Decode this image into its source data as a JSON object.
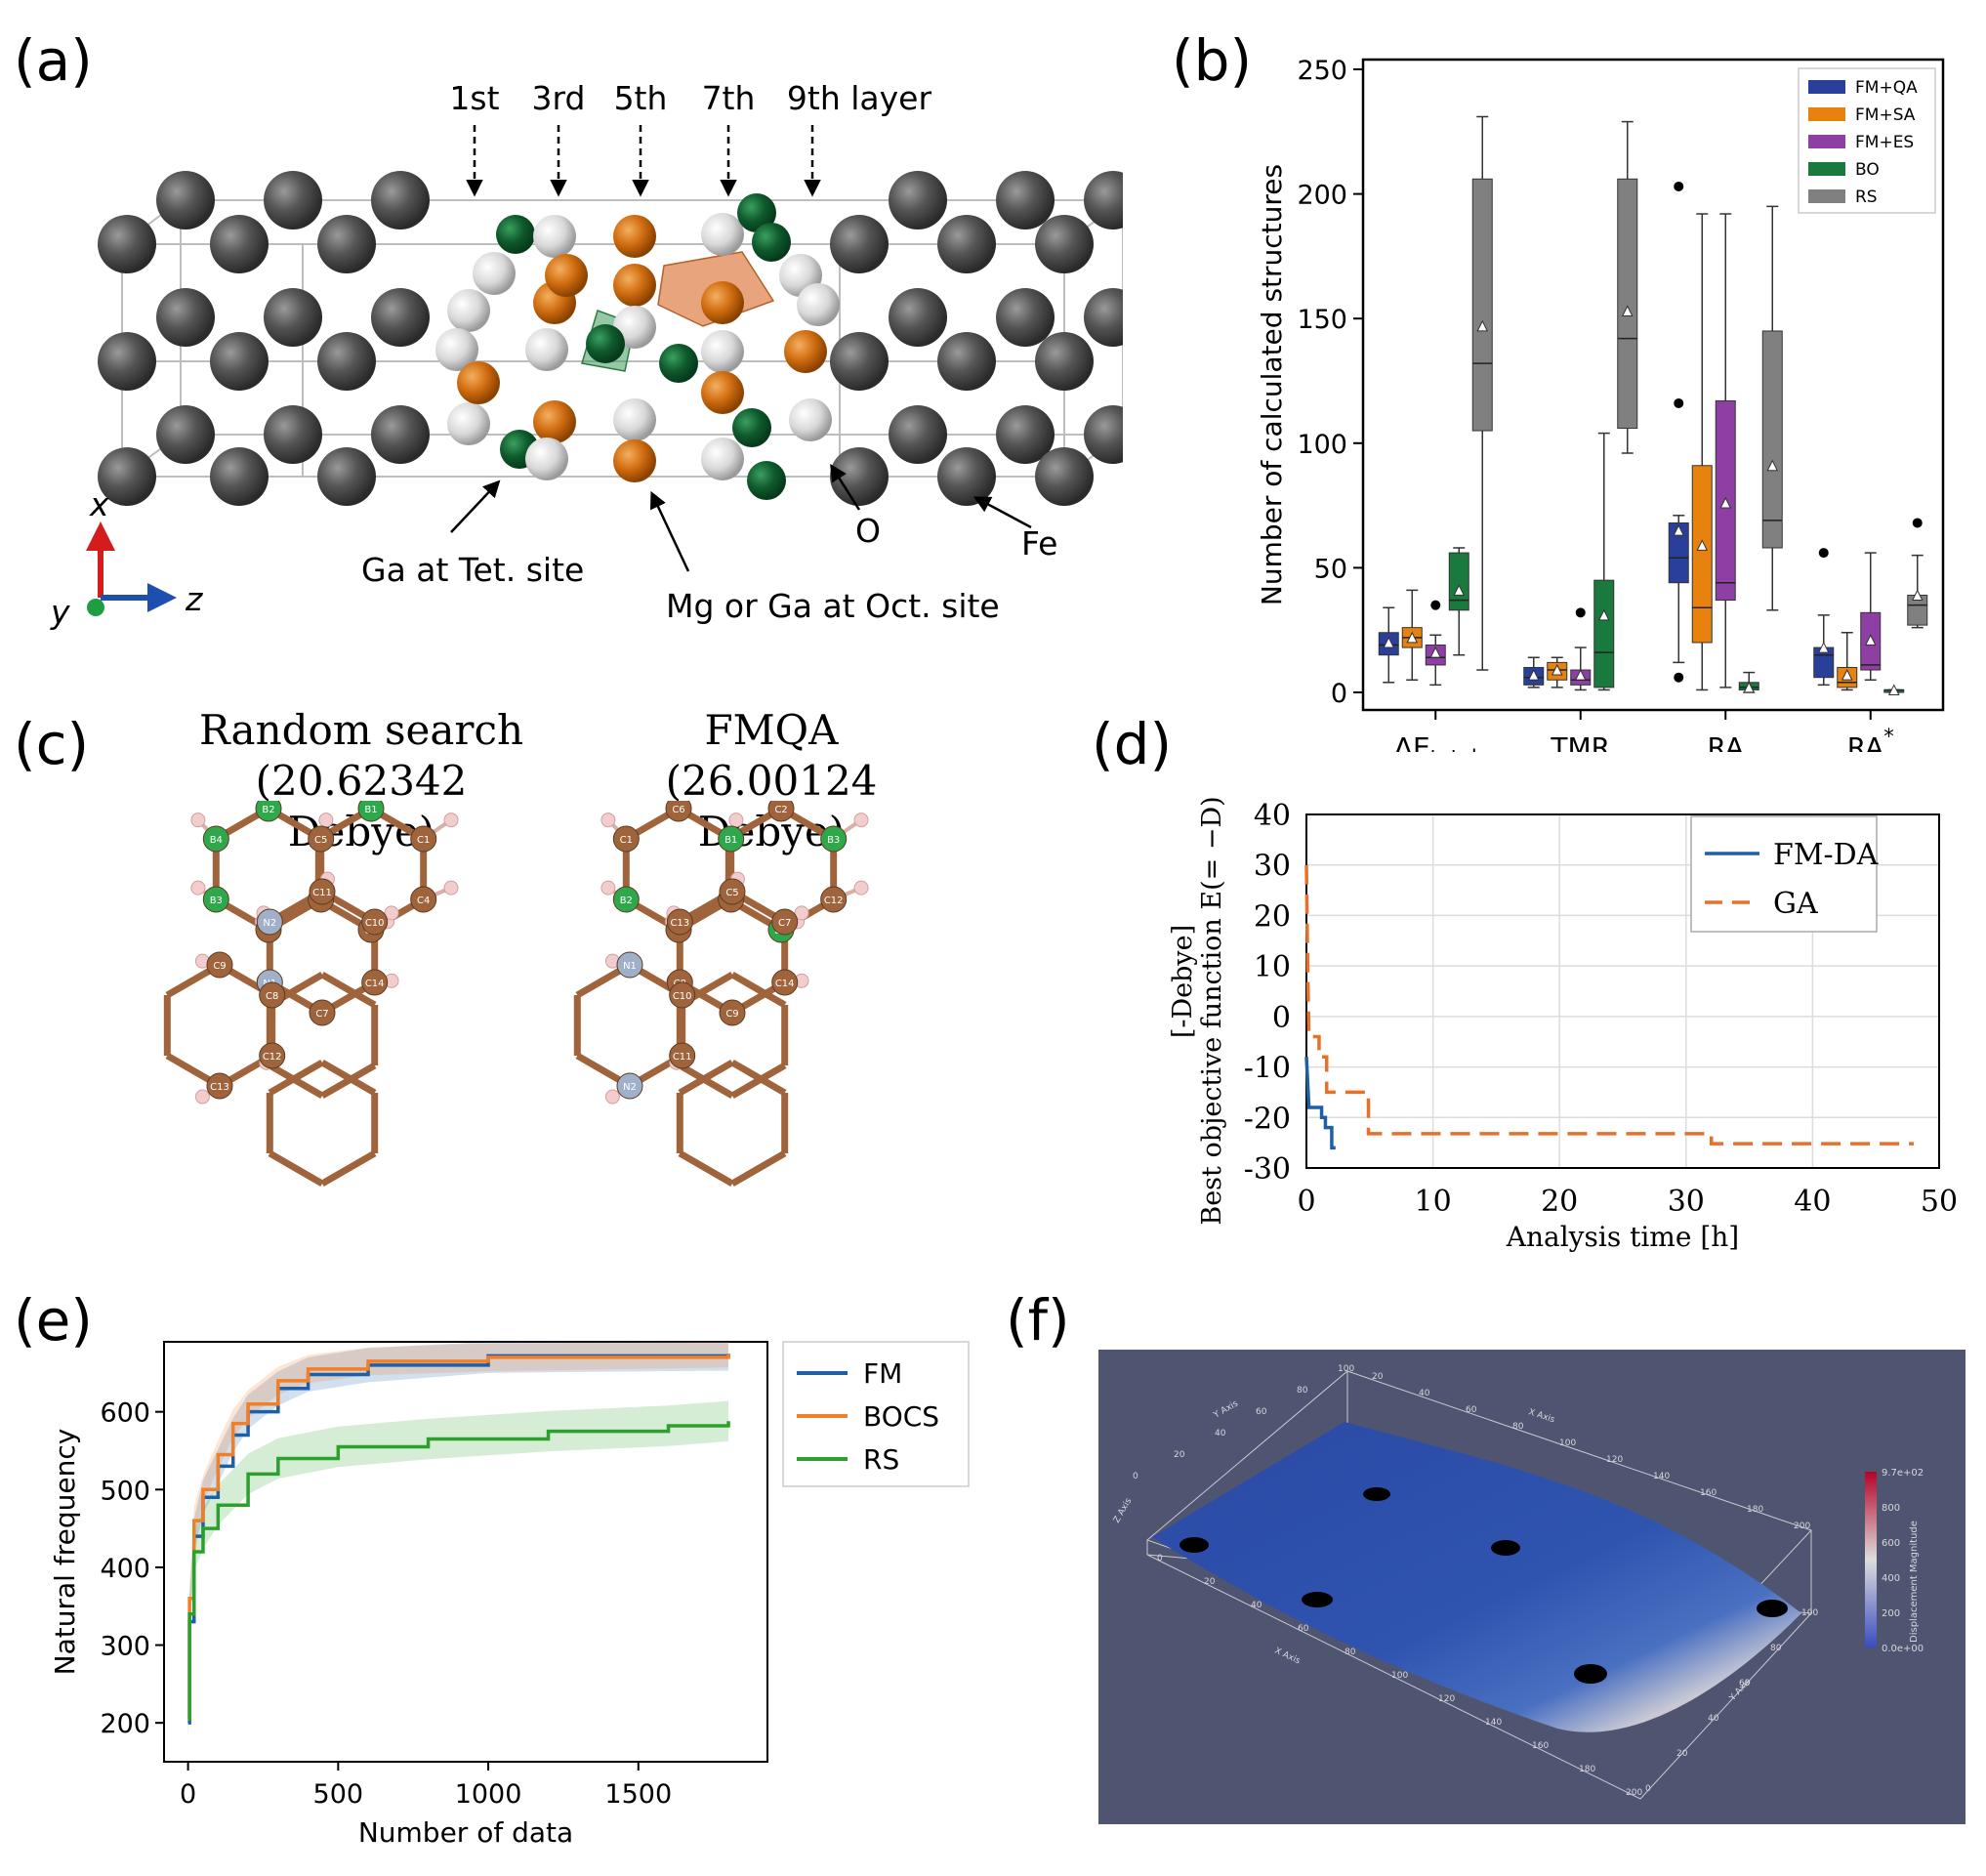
{
  "panels": {
    "a": "(a)",
    "b": "(b)",
    "c": "(c)",
    "d": "(d)",
    "e": "(e)",
    "f": "(f)"
  },
  "panel_a": {
    "layers": [
      "1st",
      "3rd",
      "5th",
      "7th",
      "9th layer"
    ],
    "labels": {
      "ga_tet": "Ga at Tet. site",
      "mg_oct": "Mg or Ga at Oct. site",
      "o": "O",
      "fe": "Fe"
    },
    "axes": {
      "x": "x",
      "y": "y",
      "z": "z"
    }
  },
  "panel_c": {
    "left_title": "Random search",
    "left_value": "(20.62342 Debye)",
    "right_title": "FMQA",
    "right_value": "(26.00124 Debye)",
    "left_atoms": [
      "B2",
      "C5",
      "C2",
      "C3",
      "B3",
      "B4",
      "B1",
      "C1",
      "C4",
      "C6",
      "C11",
      "C10",
      "C14",
      "C7",
      "N1",
      "N2",
      "C9",
      "C8",
      "C12",
      "C13"
    ],
    "right_atoms": [
      "C6",
      "B1",
      "C3",
      "C4",
      "B2",
      "C1",
      "C2",
      "B3",
      "C12",
      "B4",
      "C5",
      "C7",
      "C14",
      "C9",
      "C8",
      "C13",
      "N1",
      "C10",
      "C11",
      "N2"
    ]
  },
  "chart_data": [
    {
      "type": "box",
      "panel": "b",
      "ylabel": "Number of calculated structures",
      "ylim": [
        0,
        250
      ],
      "yticks": [
        0,
        50,
        100,
        150,
        200,
        250
      ],
      "categories": [
        "ΔE_total",
        "TMR",
        "RA",
        "RA*"
      ],
      "category_labels": {
        "main": [
          "ΔE",
          "TMR",
          "RA",
          "RA"
        ],
        "sub": [
          "total",
          "",
          "",
          ""
        ],
        "sup": [
          "",
          "",
          "",
          "*"
        ]
      },
      "legend": [
        {
          "name": "FM+QA",
          "color": "#2a3f9a"
        },
        {
          "name": "FM+SA",
          "color": "#e8820e"
        },
        {
          "name": "FM+ES",
          "color": "#8e3fa3"
        },
        {
          "name": "BO",
          "color": "#1a7a3e"
        },
        {
          "name": "RS",
          "color": "#808080"
        }
      ],
      "series": [
        {
          "name": "FM+QA",
          "boxes": [
            {
              "min": 4,
              "q1": 15,
              "median": 19,
              "q3": 24,
              "max": 34,
              "mean": 20,
              "outliers": []
            },
            {
              "min": 2,
              "q1": 3,
              "median": 6,
              "q3": 10,
              "max": 14,
              "mean": 7,
              "outliers": []
            },
            {
              "min": 12,
              "q1": 44,
              "median": 54,
              "q3": 68,
              "max": 71,
              "mean": 65,
              "outliers": [
                6,
                116,
                203
              ]
            },
            {
              "min": 3,
              "q1": 6,
              "median": 15,
              "q3": 18,
              "max": 31,
              "mean": 18,
              "outliers": [
                56
              ]
            }
          ]
        },
        {
          "name": "FM+SA",
          "boxes": [
            {
              "min": 5,
              "q1": 18,
              "median": 22,
              "q3": 26,
              "max": 41,
              "mean": 22,
              "outliers": []
            },
            {
              "min": 2,
              "q1": 5,
              "median": 9,
              "q3": 12,
              "max": 14,
              "mean": 9,
              "outliers": []
            },
            {
              "min": 1,
              "q1": 20,
              "median": 34,
              "q3": 91,
              "max": 192,
              "mean": 59,
              "outliers": []
            },
            {
              "min": 1,
              "q1": 2,
              "median": 4,
              "q3": 10,
              "max": 24,
              "mean": 7,
              "outliers": []
            }
          ]
        },
        {
          "name": "FM+ES",
          "boxes": [
            {
              "min": 3,
              "q1": 11,
              "median": 14,
              "q3": 19,
              "max": 23,
              "mean": 16,
              "outliers": [
                35
              ]
            },
            {
              "min": 1,
              "q1": 3,
              "median": 5,
              "q3": 9,
              "max": 18,
              "mean": 7,
              "outliers": [
                32
              ]
            },
            {
              "min": 2,
              "q1": 37,
              "median": 44,
              "q3": 117,
              "max": 192,
              "mean": 76,
              "outliers": []
            },
            {
              "min": 5,
              "q1": 9,
              "median": 11,
              "q3": 32,
              "max": 56,
              "mean": 21,
              "outliers": []
            }
          ]
        },
        {
          "name": "BO",
          "boxes": [
            {
              "min": 15,
              "q1": 33,
              "median": 37,
              "q3": 56,
              "max": 58,
              "mean": 41,
              "outliers": []
            },
            {
              "min": 1,
              "q1": 2,
              "median": 16,
              "q3": 45,
              "max": 104,
              "mean": 31,
              "outliers": []
            },
            {
              "min": 0,
              "q1": 1,
              "median": 2,
              "q3": 4,
              "max": 8,
              "mean": 2,
              "outliers": []
            },
            {
              "min": 0,
              "q1": 0,
              "median": 1,
              "q3": 1,
              "max": 1,
              "mean": 1,
              "outliers": []
            }
          ]
        },
        {
          "name": "RS",
          "boxes": [
            {
              "min": 9,
              "q1": 105,
              "median": 132,
              "q3": 206,
              "max": 231,
              "mean": 147,
              "outliers": []
            },
            {
              "min": 96,
              "q1": 106,
              "median": 142,
              "q3": 206,
              "max": 229,
              "mean": 153,
              "outliers": []
            },
            {
              "min": 33,
              "q1": 58,
              "median": 69,
              "q3": 145,
              "max": 195,
              "mean": 91,
              "outliers": []
            },
            {
              "min": 26,
              "q1": 27,
              "median": 35,
              "q3": 39,
              "max": 55,
              "mean": 39,
              "outliers": [
                68
              ]
            }
          ]
        }
      ]
    },
    {
      "type": "line",
      "panel": "d",
      "xlabel": "Analysis time [h]",
      "ylabel": "Best objective function E(= −D)",
      "ylabel_unit": "[-Debye]",
      "xlim": [
        0,
        50
      ],
      "ylim": [
        -30,
        40
      ],
      "xticks": [
        0,
        10,
        20,
        30,
        40,
        50
      ],
      "yticks": [
        40,
        30,
        20,
        10,
        0,
        -10,
        -20,
        -30
      ],
      "series": [
        {
          "name": "FM-DA",
          "color": "#1f5fa8",
          "style": "solid",
          "points": [
            [
              0,
              -8
            ],
            [
              0.2,
              -18
            ],
            [
              1.2,
              -18
            ],
            [
              1.2,
              -20
            ],
            [
              1.5,
              -20
            ],
            [
              1.5,
              -22
            ],
            [
              2,
              -22
            ],
            [
              2,
              -26
            ],
            [
              2.3,
              -26
            ]
          ]
        },
        {
          "name": "GA",
          "color": "#e8702a",
          "style": "dashed",
          "points": [
            [
              0,
              30
            ],
            [
              0.1,
              10
            ],
            [
              0.2,
              -4
            ],
            [
              1,
              -4
            ],
            [
              1,
              -8
            ],
            [
              1.6,
              -8
            ],
            [
              1.6,
              -15
            ],
            [
              4.9,
              -15
            ],
            [
              4.9,
              -23.2
            ],
            [
              32,
              -23.2
            ],
            [
              32,
              -25.2
            ],
            [
              48,
              -25.2
            ]
          ]
        }
      ]
    },
    {
      "type": "line",
      "panel": "e",
      "xlabel": "Number of data",
      "ylabel": "Natural frequency",
      "xlim": [
        -80,
        1930
      ],
      "ylim": [
        150,
        690
      ],
      "xticks": [
        0,
        500,
        1000,
        1500
      ],
      "yticks": [
        200,
        300,
        400,
        500,
        600
      ],
      "series": [
        {
          "name": "FM",
          "color": "#1f5fa8",
          "x": [
            0,
            5,
            20,
            50,
            100,
            150,
            200,
            300,
            400,
            600,
            1000,
            1800
          ],
          "y": [
            200,
            330,
            440,
            490,
            530,
            570,
            600,
            630,
            648,
            660,
            672,
            675
          ]
        },
        {
          "name": "BOCS",
          "color": "#f07f2a",
          "x": [
            0,
            5,
            20,
            50,
            100,
            150,
            200,
            300,
            400,
            600,
            1000,
            1800
          ],
          "y": [
            205,
            360,
            460,
            500,
            545,
            585,
            610,
            640,
            655,
            665,
            670,
            675
          ]
        },
        {
          "name": "RS",
          "color": "#2ca02c",
          "x": [
            0,
            5,
            20,
            50,
            100,
            200,
            300,
            500,
            800,
            1200,
            1600,
            1800
          ],
          "y": [
            205,
            340,
            420,
            450,
            480,
            520,
            540,
            555,
            565,
            575,
            582,
            588
          ]
        }
      ]
    }
  ],
  "panel_f": {
    "axis_labels": {
      "y_axis": "Y Axis",
      "x_axis": "X Axis",
      "z_axis": "Z Axis"
    },
    "top_y_ticks": [
      "0",
      "20",
      "40",
      "60",
      "80",
      "100"
    ],
    "top_x_ticks": [
      "20",
      "40",
      "60",
      "80",
      "100",
      "120",
      "140",
      "160",
      "180",
      "200"
    ],
    "bottom_x_ticks": [
      "0",
      "20",
      "40",
      "60",
      "80",
      "100",
      "120",
      "140",
      "160",
      "180",
      "200"
    ],
    "bottom_y_ticks": [
      "0",
      "20",
      "40",
      "60",
      "80",
      "100"
    ],
    "colorbar_title": "Displacement Magnitude",
    "colorbar_ticks": [
      "9.7e+02",
      "800",
      "600",
      "400",
      "200",
      "0.0e+00"
    ],
    "colors": {
      "background": "#4f5470",
      "surface": "#2c4ea6",
      "hot": "#c0302a"
    }
  }
}
